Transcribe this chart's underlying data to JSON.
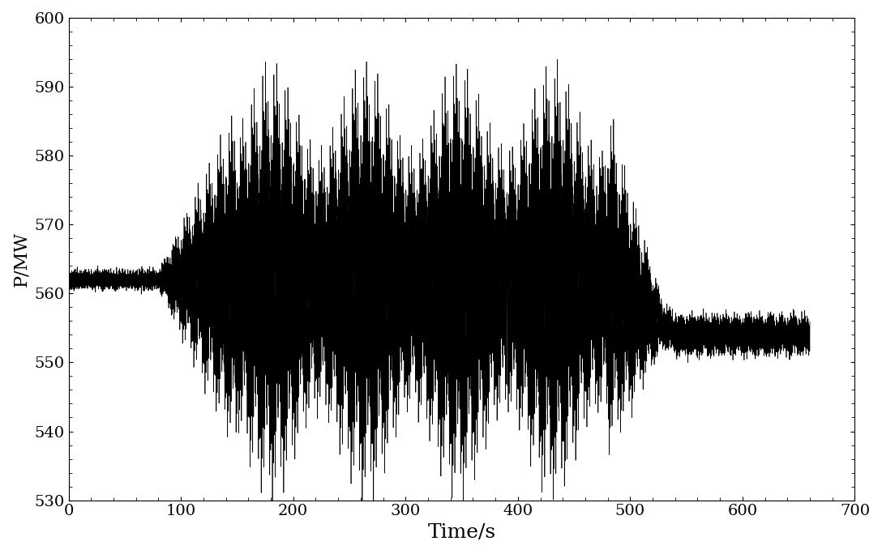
{
  "xlabel": "Time/s",
  "ylabel": "P/MW",
  "xlim": [
    0,
    700
  ],
  "ylim": [
    530,
    600
  ],
  "xticks": [
    0,
    100,
    200,
    300,
    400,
    500,
    600,
    700
  ],
  "yticks": [
    530,
    540,
    550,
    560,
    570,
    580,
    590,
    600
  ],
  "line_color": "#000000",
  "line_width": 0.5,
  "background_color": "#ffffff",
  "figsize": [
    10.88,
    6.84
  ],
  "dpi": 100,
  "base_power": 562.0,
  "final_power": 554.0,
  "xlabel_fontsize": 18,
  "ylabel_fontsize": 16,
  "tick_fontsize": 14
}
